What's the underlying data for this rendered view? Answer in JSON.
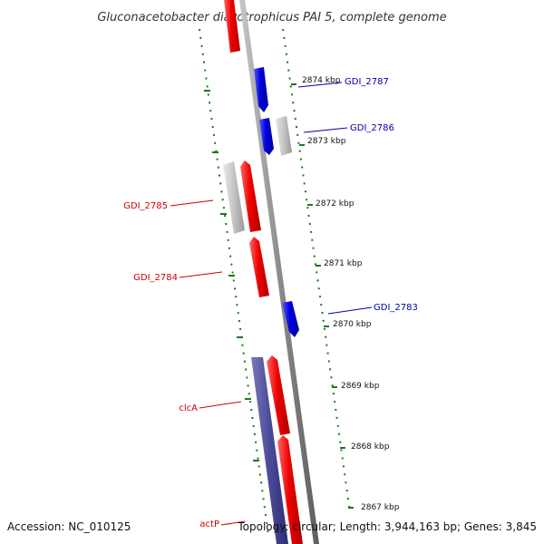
{
  "title": "Gluconacetobacter diazotrophicus PAI 5, complete genome",
  "colors": {
    "forward_gene": "#ee0000",
    "reverse_gene": "#0000dd",
    "other_feature": "#c4c4c4",
    "region": "#4a4a9a",
    "backbone": "#8c8c8c",
    "ticks": "#1a7a1a",
    "forward_label": "#cc0000",
    "reverse_label": "#0000aa"
  },
  "ticks": [
    {
      "label": "2874 kbp"
    },
    {
      "label": "2873 kbp"
    },
    {
      "label": "2872 kbp"
    },
    {
      "label": "2871 kbp"
    },
    {
      "label": "2870 kbp"
    },
    {
      "label": "2869 kbp"
    },
    {
      "label": "2868 kbp"
    },
    {
      "label": "2867 kbp"
    }
  ],
  "gene_labels": {
    "gdi_2787": "GDI_2787",
    "gdi_2786": "GDI_2786",
    "gdi_2785": "GDI_2785",
    "gdi_2784": "GDI_2784",
    "gdi_2783": "GDI_2783",
    "clca": "clcA",
    "actp": "actP"
  },
  "footer": {
    "accession": "Accession: NC_010125",
    "summary": "Topology: circular; Length: 3,944,163 bp; Genes: 3,845"
  }
}
